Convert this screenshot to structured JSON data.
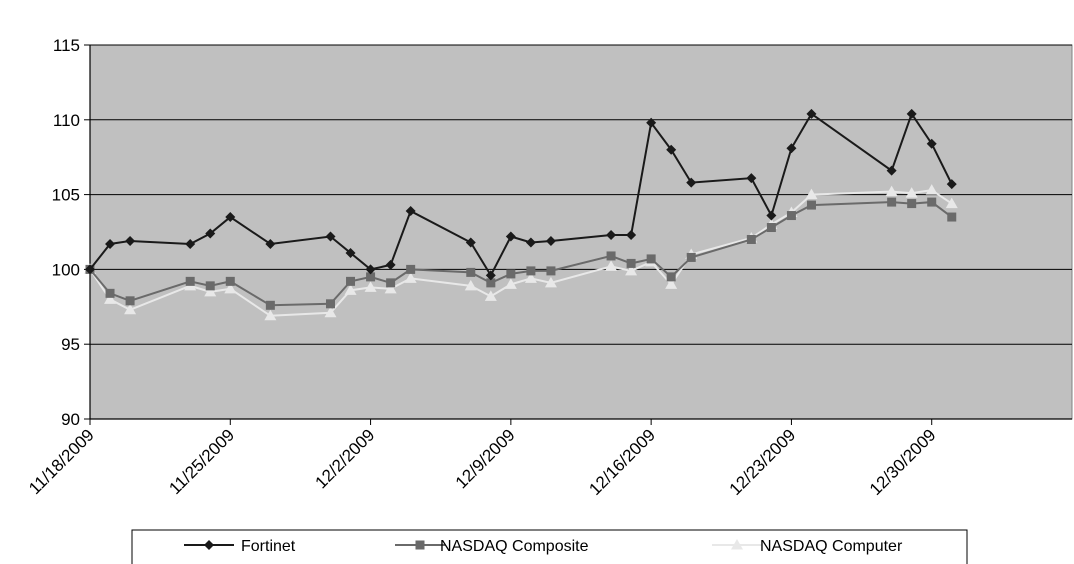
{
  "chart_data": {
    "type": "line",
    "title": "",
    "xlabel": "",
    "ylabel": "",
    "ylim": [
      90,
      115
    ],
    "yticks": [
      90,
      95,
      100,
      105,
      110,
      115
    ],
    "x_tick_labels": [
      "11/18/2009",
      "11/25/2009",
      "12/2/2009",
      "12/9/2009",
      "12/16/2009",
      "12/23/2009",
      "12/30/2009"
    ],
    "grid": true,
    "legend_position": "bottom",
    "plot_background": "#c0c0c0",
    "x": [
      "11/18/2009",
      "11/19/2009",
      "11/20/2009",
      "11/23/2009",
      "11/24/2009",
      "11/25/2009",
      "11/27/2009",
      "11/30/2009",
      "12/1/2009",
      "12/2/2009",
      "12/3/2009",
      "12/4/2009",
      "12/7/2009",
      "12/8/2009",
      "12/9/2009",
      "12/10/2009",
      "12/11/2009",
      "12/14/2009",
      "12/15/2009",
      "12/16/2009",
      "12/17/2009",
      "12/18/2009",
      "12/21/2009",
      "12/22/2009",
      "12/23/2009",
      "12/24/2009",
      "12/28/2009",
      "12/29/2009",
      "12/30/2009",
      "12/31/2009"
    ],
    "series": [
      {
        "name": "Fortinet",
        "color": "#1a1a1a",
        "marker": "diamond",
        "values": [
          100.0,
          101.7,
          101.9,
          101.7,
          102.4,
          103.5,
          101.7,
          102.2,
          101.1,
          100.0,
          100.3,
          103.9,
          101.8,
          99.6,
          102.2,
          101.8,
          101.9,
          102.3,
          102.3,
          109.8,
          108.0,
          105.8,
          106.1,
          103.6,
          108.1,
          110.4,
          106.6,
          110.4,
          108.4,
          105.7
        ]
      },
      {
        "name": "NASDAQ Composite",
        "color": "#6a6a6a",
        "marker": "square",
        "values": [
          100.0,
          98.4,
          97.9,
          99.2,
          98.9,
          99.2,
          97.6,
          97.7,
          99.2,
          99.5,
          99.1,
          100.0,
          99.8,
          99.1,
          99.7,
          99.9,
          99.9,
          100.9,
          100.4,
          100.7,
          99.5,
          100.8,
          102.0,
          102.8,
          103.6,
          104.3,
          104.5,
          104.4,
          104.5,
          103.5
        ]
      },
      {
        "name": "NASDAQ Computer",
        "color": "#e8e8e8",
        "marker": "triangle",
        "values": [
          100.0,
          98.0,
          97.3,
          98.9,
          98.5,
          98.7,
          96.9,
          97.1,
          98.6,
          98.8,
          98.7,
          99.4,
          98.9,
          98.2,
          99.0,
          99.4,
          99.1,
          100.2,
          99.9,
          100.5,
          99.0,
          101.0,
          102.1,
          103.0,
          103.8,
          105.0,
          105.2,
          105.1,
          105.3,
          104.4
        ]
      }
    ]
  }
}
